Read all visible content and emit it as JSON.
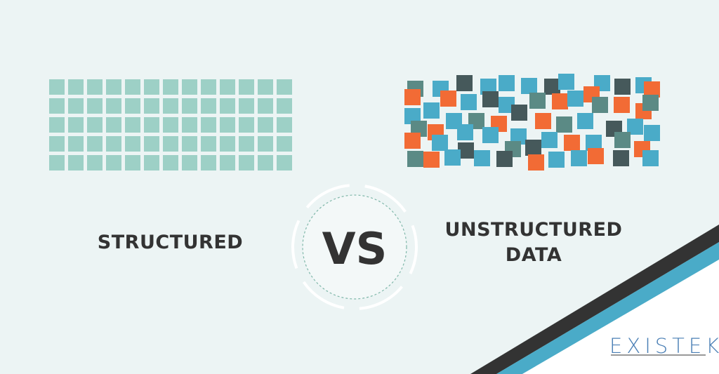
{
  "left_label": "STRUCTURED",
  "right_label_line1": "UNSTRUCTURED",
  "right_label_line2": "DATA",
  "vs": "VS",
  "logo": "EXISTEK",
  "structured_grid": {
    "columns": 13,
    "rows": 5,
    "color": "#9dd0c6"
  },
  "colors": {
    "background": "#ecf4f4",
    "orange": "#f26b35",
    "blue": "#4aabc8",
    "dark": "#46595b",
    "gray_teal": "#5b8a85",
    "text": "#333333",
    "stripe_dark": "#333333",
    "stripe_blue": "#4aabc8",
    "logo": "#4a7fb5"
  }
}
